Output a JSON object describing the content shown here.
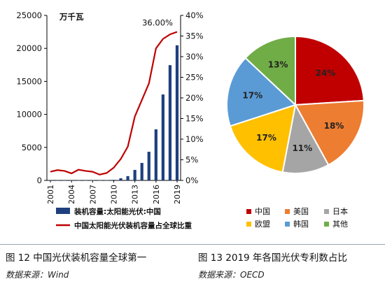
{
  "captions": {
    "left": "图 12  中国光伏装机容量全球第一",
    "right": "图 13 2019 年各国光伏专利数占比",
    "left_source": "数据来源：Wind",
    "right_source": "数据来源：OECD"
  },
  "chart_data": [
    {
      "type": "bar",
      "unit": "万千瓦",
      "categories": [
        "2001",
        "2002",
        "2003",
        "2004",
        "2005",
        "2006",
        "2007",
        "2008",
        "2009",
        "2010",
        "2011",
        "2012",
        "2013",
        "2014",
        "2015",
        "2016",
        "2017",
        "2018",
        "2019"
      ],
      "x_tick_labels": [
        "2001",
        "2004",
        "2007",
        "2010",
        "2013",
        "2016",
        "2019"
      ],
      "ylim": [
        0,
        25000
      ],
      "y_ticks": [
        "0",
        "5000",
        "10000",
        "15000",
        "20000",
        "25000"
      ],
      "y2lim": [
        0,
        40
      ],
      "y2_ticks": [
        "0%",
        "5%",
        "10%",
        "15%",
        "20%",
        "25%",
        "30%",
        "35%",
        "40%"
      ],
      "series": [
        {
          "name": "装机容量:太阳能光伏:中国",
          "kind": "bar",
          "color": "#1f3f7f",
          "values": [
            2.4,
            4.5,
            5.5,
            6.5,
            7,
            8,
            10,
            14,
            30,
            86,
            330,
            650,
            1590,
            2650,
            4340,
            7740,
            13020,
            17460,
            20470
          ]
        },
        {
          "name": "中国太阳能光伏装机容量占全球比重",
          "kind": "line",
          "axis": "right",
          "color": "#c00000",
          "values": [
            2.1,
            2.5,
            2.3,
            1.7,
            2.6,
            2.3,
            2.1,
            1.4,
            1.8,
            3.1,
            5.2,
            8.2,
            15.5,
            19.5,
            23.5,
            32.0,
            34.3,
            35.4,
            36.0
          ]
        }
      ],
      "annotations": [
        {
          "text": "36.00%",
          "category": "2019",
          "value": 36.0
        }
      ]
    },
    {
      "type": "pie",
      "slices": [
        {
          "name": "中国",
          "value": 24,
          "label": "24%",
          "color": "#c00000"
        },
        {
          "name": "美国",
          "value": 18,
          "label": "18%",
          "color": "#ed7d31"
        },
        {
          "name": "日本",
          "value": 11,
          "label": "11%",
          "color": "#a5a5a5"
        },
        {
          "name": "欧盟",
          "value": 17,
          "label": "17%",
          "color": "#ffc000"
        },
        {
          "name": "韩国",
          "value": 17,
          "label": "17%",
          "color": "#5b9bd5"
        },
        {
          "name": "其他",
          "value": 13,
          "label": "13%",
          "color": "#70ad47"
        }
      ],
      "legend_placement": "bottom",
      "legend_order": [
        "中国",
        "美国",
        "日本",
        "欧盟",
        "韩国",
        "其他"
      ]
    }
  ]
}
